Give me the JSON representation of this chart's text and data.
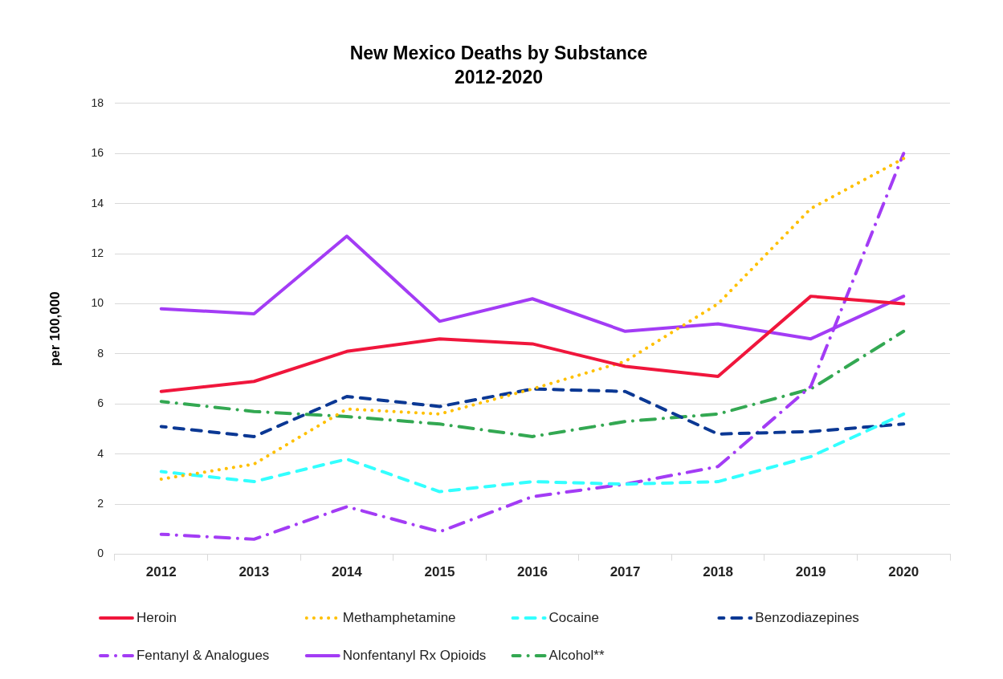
{
  "chart_data": {
    "type": "line",
    "title": "New Mexico Deaths by Substance\n2012-2020",
    "ylabel": "per 100,000",
    "categories": [
      "2012",
      "2013",
      "2014",
      "2015",
      "2016",
      "2017",
      "2018",
      "2019",
      "2020"
    ],
    "series": [
      {
        "name": "Heroin",
        "color": "#f0163c",
        "line_style": "solid",
        "values": [
          6.5,
          6.9,
          8.1,
          8.6,
          8.4,
          7.5,
          7.1,
          10.3,
          10.0
        ]
      },
      {
        "name": "Methamphetamine",
        "color": "#ffc000",
        "line_style": "dotted",
        "values": [
          3.0,
          3.6,
          5.8,
          5.6,
          6.6,
          7.7,
          10.0,
          13.8,
          15.8
        ]
      },
      {
        "name": "Cocaine",
        "color": "#33ffff",
        "line_style": "dashed",
        "values": [
          3.3,
          2.9,
          3.8,
          2.5,
          2.9,
          2.8,
          2.9,
          3.9,
          5.6
        ]
      },
      {
        "name": "Benzodiazepines",
        "color": "#0b3894",
        "line_style": "dashed",
        "values": [
          5.1,
          4.7,
          6.3,
          5.9,
          6.6,
          6.5,
          4.8,
          4.9,
          5.2
        ]
      },
      {
        "name": "Fentanyl & Analogues",
        "color": "#a33cf5",
        "line_style": "dashdot",
        "values": [
          0.8,
          0.6,
          1.9,
          0.9,
          2.3,
          2.8,
          3.5,
          6.7,
          16.0
        ]
      },
      {
        "name": "Nonfentanyl Rx Opioids",
        "color": "#a33cf5",
        "line_style": "solid",
        "values": [
          9.8,
          9.6,
          12.7,
          9.3,
          10.2,
          8.9,
          9.2,
          8.6,
          10.3
        ]
      },
      {
        "name": "Alcohol**",
        "color": "#33a852",
        "line_style": "dashdot",
        "values": [
          6.1,
          5.7,
          5.5,
          5.2,
          4.7,
          5.3,
          5.6,
          6.6,
          8.9
        ]
      }
    ],
    "ylim": [
      0,
      18
    ],
    "yticks": [
      0,
      2,
      4,
      6,
      8,
      10,
      12,
      14,
      16,
      18
    ],
    "grid": "y",
    "legend": "bottom"
  }
}
